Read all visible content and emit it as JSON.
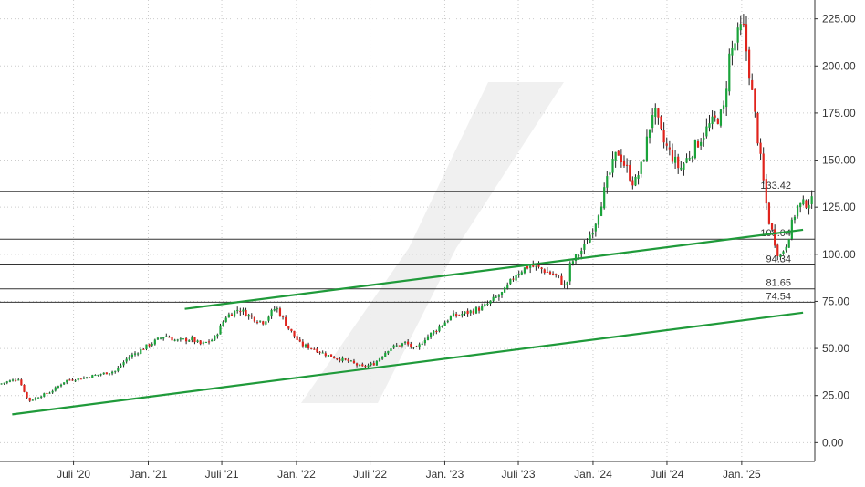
{
  "chart_data": {
    "type": "candlestick",
    "x_axis": {
      "tick_labels": [
        "Juli '20",
        "Jan. '21",
        "Juli '21",
        "Jan. '22",
        "Juli '22",
        "Jan. '23",
        "Juli '23",
        "Jan. '24",
        "Juli '24",
        "Jan. '25"
      ],
      "tick_dates": [
        "2020-07-01",
        "2021-01-01",
        "2021-07-01",
        "2022-01-01",
        "2022-07-01",
        "2023-01-01",
        "2023-07-01",
        "2024-01-01",
        "2024-07-01",
        "2025-01-01"
      ],
      "range": [
        "2020-01-02",
        "2025-06-30"
      ]
    },
    "y_axis": {
      "side": "right",
      "tick_labels": [
        "225.00",
        "200.00",
        "175.00",
        "150.00",
        "125.00",
        "100.00",
        "75.00",
        "50.00",
        "25.00",
        "0.00"
      ],
      "tick_values": [
        225,
        200,
        175,
        150,
        125,
        100,
        75,
        50,
        25,
        0
      ],
      "range": [
        -10,
        235
      ]
    },
    "grid": true,
    "horizontal_levels": [
      {
        "value": 133.42,
        "label": "133.42"
      },
      {
        "value": 108.04,
        "label": "108.04"
      },
      {
        "value": 94.34,
        "label": "94.34"
      },
      {
        "value": 81.65,
        "label": "81.65"
      },
      {
        "value": 74.54,
        "label": "74.54"
      }
    ],
    "trendlines": [
      {
        "from": {
          "date": "2020-02-01",
          "value": 15
        },
        "to": {
          "date": "2025-06-01",
          "value": 69
        }
      },
      {
        "from": {
          "date": "2021-04-01",
          "value": 71
        },
        "to": {
          "date": "2025-06-01",
          "value": 113
        }
      }
    ],
    "price_path": [
      [
        "2020-01-02",
        31
      ],
      [
        "2020-02-20",
        34
      ],
      [
        "2020-03-16",
        22
      ],
      [
        "2020-04-15",
        25
      ],
      [
        "2020-05-10",
        27
      ],
      [
        "2020-06-15",
        33
      ],
      [
        "2020-07-20",
        34
      ],
      [
        "2020-09-01",
        36
      ],
      [
        "2020-10-15",
        38
      ],
      [
        "2020-11-15",
        45
      ],
      [
        "2020-12-30",
        51
      ],
      [
        "2021-02-15",
        57
      ],
      [
        "2021-03-15",
        54
      ],
      [
        "2021-04-20",
        55
      ],
      [
        "2021-05-15",
        52
      ],
      [
        "2021-06-15",
        55
      ],
      [
        "2021-07-15",
        67
      ],
      [
        "2021-08-15",
        71
      ],
      [
        "2021-09-20",
        66
      ],
      [
        "2021-10-15",
        64
      ],
      [
        "2021-11-15",
        72
      ],
      [
        "2021-12-15",
        61
      ],
      [
        "2022-01-15",
        52
      ],
      [
        "2022-02-15",
        50
      ],
      [
        "2022-03-15",
        47
      ],
      [
        "2022-04-10",
        45
      ],
      [
        "2022-05-15",
        43
      ],
      [
        "2022-06-15",
        40
      ],
      [
        "2022-07-15",
        42
      ],
      [
        "2022-08-20",
        50
      ],
      [
        "2022-09-30",
        53
      ],
      [
        "2022-10-25",
        49
      ],
      [
        "2022-11-15",
        55
      ],
      [
        "2022-12-20",
        61
      ],
      [
        "2023-01-20",
        67
      ],
      [
        "2023-03-01",
        69
      ],
      [
        "2023-04-10",
        72
      ],
      [
        "2023-05-30",
        80
      ],
      [
        "2023-06-30",
        90
      ],
      [
        "2023-08-01",
        94
      ],
      [
        "2023-09-01",
        92
      ],
      [
        "2023-10-10",
        88
      ],
      [
        "2023-10-30",
        82
      ],
      [
        "2023-11-10",
        95
      ],
      [
        "2023-12-15",
        104
      ],
      [
        "2024-01-10",
        117
      ],
      [
        "2024-02-10",
        140
      ],
      [
        "2024-03-05",
        155
      ],
      [
        "2024-04-15",
        137
      ],
      [
        "2024-05-05",
        148
      ],
      [
        "2024-06-01",
        178
      ],
      [
        "2024-06-25",
        160
      ],
      [
        "2024-08-05",
        145
      ],
      [
        "2024-09-05",
        155
      ],
      [
        "2024-10-15",
        168
      ],
      [
        "2024-11-20",
        175
      ],
      [
        "2024-12-05",
        205
      ],
      [
        "2025-01-07",
        222
      ],
      [
        "2025-01-20",
        202
      ],
      [
        "2025-02-05",
        175
      ],
      [
        "2025-03-10",
        120
      ],
      [
        "2025-04-07",
        98
      ],
      [
        "2025-04-25",
        106
      ],
      [
        "2025-05-20",
        125
      ],
      [
        "2025-06-20",
        128
      ]
    ]
  }
}
